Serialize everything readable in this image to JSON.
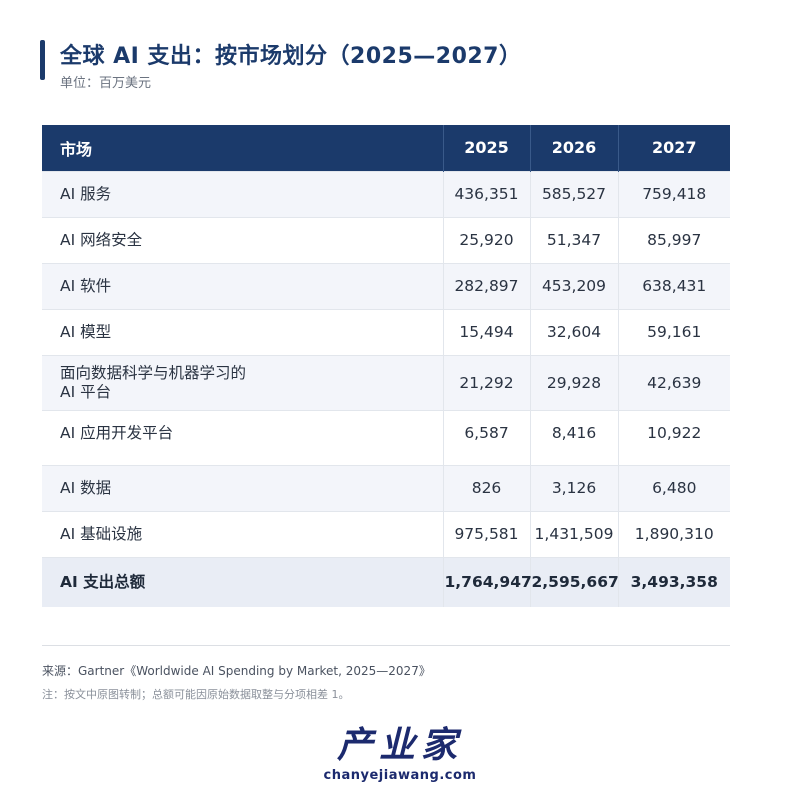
{
  "title": "全球 AI 支出：按市场划分（2025—2027）",
  "unit": "单位：百万美元",
  "table": {
    "headers": [
      "市场",
      "2025",
      "2026",
      "2027"
    ],
    "rows": [
      {
        "market": "AI 服务",
        "v2025": "436,351",
        "v2026": "585,527",
        "v2027": "759,418"
      },
      {
        "market": "AI 网络安全",
        "v2025": "25,920",
        "v2026": "51,347",
        "v2027": "85,997"
      },
      {
        "market": "AI 软件",
        "v2025": "282,897",
        "v2026": "453,209",
        "v2027": "638,431"
      },
      {
        "market": "AI 模型",
        "v2025": "15,494",
        "v2026": "32,604",
        "v2027": "59,161"
      },
      {
        "market": "面向数据科学与机器学习的",
        "market2": "AI 平台",
        "v2025": "21,292",
        "v2026": "29,928",
        "v2027": "42,639"
      },
      {
        "market": "AI 应用开发平台",
        "v2025": "6,587",
        "v2026": "8,416",
        "v2027": "10,922"
      },
      {
        "market": "AI 数据",
        "v2025": "826",
        "v2026": "3,126",
        "v2027": "6,480"
      },
      {
        "market": "AI 基础设施",
        "v2025": "975,581",
        "v2026": "1,431,509",
        "v2027": "1,890,310"
      }
    ],
    "total": {
      "market": "AI 支出总额",
      "v2025": "1,764,947",
      "v2026": "2,595,667",
      "v2027": "3,493,358"
    }
  },
  "source": "来源：Gartner《Worldwide AI Spending by Market, 2025—2027》",
  "note": "注：按文中原图转制；总额可能因原始数据取整与分项相差 1。",
  "logo": {
    "main": "产业家",
    "sub": "chanyejiawang.com"
  }
}
